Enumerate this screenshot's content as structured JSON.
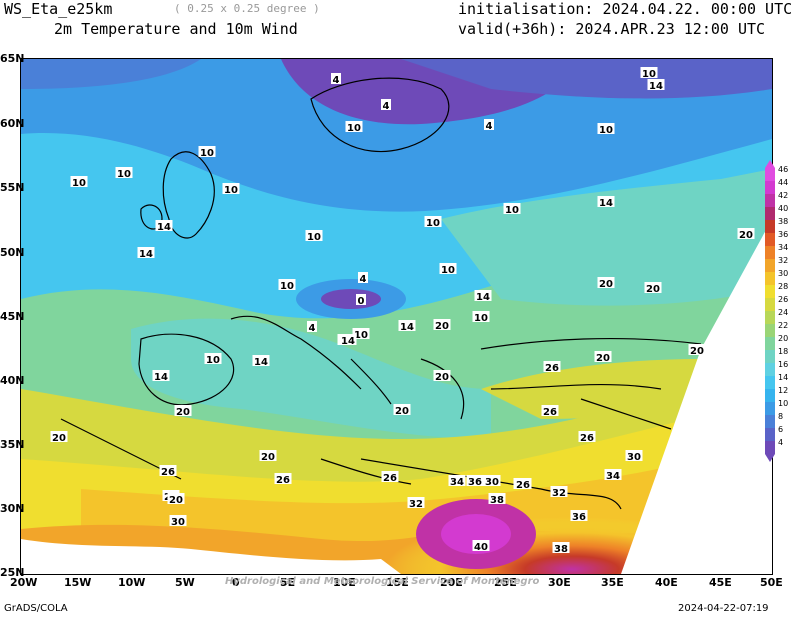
{
  "header": {
    "model": "WS_Eta_e25km",
    "resolution": "( 0.25 x 0.25 degree )",
    "variable": "2m Temperature and 10m Wind",
    "init_label": "initialisation: 2024.04.22. 00:00 UTC",
    "valid_label": "valid(+36h): 2024.APR.23 12:00 UTC"
  },
  "footer": {
    "left": "GrADS/COLA",
    "right": "2024-04-22-07:19"
  },
  "watermark": "Hydrological and Meteorological Service of Montenegro",
  "axes": {
    "lat_labels": [
      "65N",
      "60N",
      "55N",
      "50N",
      "45N",
      "40N",
      "35N",
      "30N",
      "25N"
    ],
    "lon_labels": [
      "20W",
      "15W",
      "10W",
      "5W",
      "0",
      "5E",
      "10E",
      "15E",
      "20E",
      "25E",
      "30E",
      "35E",
      "40E",
      "45E",
      "50E"
    ]
  },
  "colorbar": {
    "levels": [
      "4",
      "6",
      "8",
      "10",
      "12",
      "14",
      "16",
      "18",
      "20",
      "22",
      "24",
      "26",
      "28",
      "30",
      "32",
      "34",
      "36",
      "38",
      "40",
      "42",
      "44",
      "46"
    ],
    "colors": [
      "#6e4ab8",
      "#5a63c8",
      "#4a80d8",
      "#3c9be6",
      "#36b4ee",
      "#45c6ef",
      "#5fd1e2",
      "#6fd4c4",
      "#80d59d",
      "#9ad576",
      "#b8d758",
      "#d6d940",
      "#f0de2f",
      "#f4c42b",
      "#f2a52a",
      "#ee8228",
      "#e25a26",
      "#c63a28",
      "#b02a6e",
      "#c032a6",
      "#d33ad0",
      "#e04ce0"
    ]
  },
  "contour_labels": [
    {
      "text": "4"
    },
    {
      "text": "4"
    },
    {
      "text": "4"
    },
    {
      "text": "10"
    },
    {
      "text": "14"
    },
    {
      "text": "10"
    },
    {
      "text": "10"
    },
    {
      "text": "10"
    },
    {
      "text": "10"
    },
    {
      "text": "10"
    },
    {
      "text": "10"
    },
    {
      "text": "14"
    },
    {
      "text": "14"
    },
    {
      "text": "10"
    },
    {
      "text": "10"
    },
    {
      "text": "14"
    },
    {
      "text": "20"
    },
    {
      "text": "10"
    },
    {
      "text": "4"
    },
    {
      "text": "0"
    },
    {
      "text": "4"
    },
    {
      "text": "10"
    },
    {
      "text": "10"
    },
    {
      "text": "14"
    },
    {
      "text": "14"
    },
    {
      "text": "20"
    },
    {
      "text": "20"
    },
    {
      "text": "20"
    },
    {
      "text": "14"
    },
    {
      "text": "10"
    },
    {
      "text": "14"
    },
    {
      "text": "20"
    },
    {
      "text": "20"
    },
    {
      "text": "20"
    },
    {
      "text": "10"
    },
    {
      "text": "14"
    },
    {
      "text": "14"
    },
    {
      "text": "20"
    },
    {
      "text": "20"
    },
    {
      "text": "20"
    },
    {
      "text": "26"
    },
    {
      "text": "26"
    },
    {
      "text": "26"
    },
    {
      "text": "30"
    },
    {
      "text": "20"
    },
    {
      "text": "26"
    },
    {
      "text": "26"
    },
    {
      "text": "26"
    },
    {
      "text": "20"
    },
    {
      "text": "30"
    },
    {
      "text": "26"
    },
    {
      "text": "32"
    },
    {
      "text": "34"
    },
    {
      "text": "36"
    },
    {
      "text": "30"
    },
    {
      "text": "26"
    },
    {
      "text": "38"
    },
    {
      "text": "32"
    },
    {
      "text": "36"
    },
    {
      "text": "34"
    },
    {
      "text": "40"
    },
    {
      "text": "38"
    },
    {
      "text": "20"
    },
    {
      "text": "10"
    }
  ]
}
